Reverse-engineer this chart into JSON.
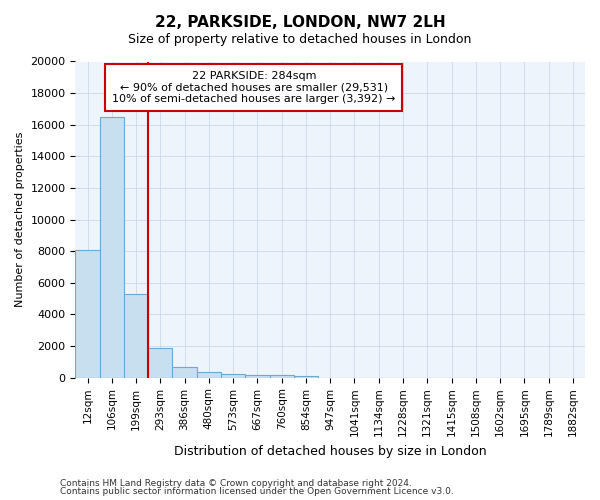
{
  "title": "22, PARKSIDE, LONDON, NW7 2LH",
  "subtitle": "Size of property relative to detached houses in London",
  "xlabel": "Distribution of detached houses by size in London",
  "ylabel": "Number of detached properties",
  "categories": [
    "12sqm",
    "106sqm",
    "199sqm",
    "293sqm",
    "386sqm",
    "480sqm",
    "573sqm",
    "667sqm",
    "760sqm",
    "854sqm",
    "947sqm",
    "1041sqm",
    "1134sqm",
    "1228sqm",
    "1321sqm",
    "1415sqm",
    "1508sqm",
    "1602sqm",
    "1695sqm",
    "1789sqm",
    "1882sqm"
  ],
  "bar_values": [
    8100,
    16500,
    5300,
    1850,
    700,
    330,
    230,
    175,
    155,
    120,
    0,
    0,
    0,
    0,
    0,
    0,
    0,
    0,
    0,
    0,
    0
  ],
  "bar_color": "#c8dff0",
  "bar_edge_color": "#6aaad4",
  "vline_color": "#cc0000",
  "vline_pos": 2.5,
  "annotation_line1": "22 PARKSIDE: 284sqm",
  "annotation_line2": "← 90% of detached houses are smaller (29,531)",
  "annotation_line3": "10% of semi-detached houses are larger (3,392) →",
  "ylim": [
    0,
    20000
  ],
  "yticks": [
    0,
    2000,
    4000,
    6000,
    8000,
    10000,
    12000,
    14000,
    16000,
    18000,
    20000
  ],
  "fig_bg_color": "#ffffff",
  "plot_bg_color": "#eef4fb",
  "footer_line1": "Contains HM Land Registry data © Crown copyright and database right 2024.",
  "footer_line2": "Contains public sector information licensed under the Open Government Licence v3.0.",
  "annotation_box_facecolor": "#ffffff",
  "annotation_box_edgecolor": "#cc0000",
  "grid_color": "#c8d8e8",
  "title_fontsize": 11,
  "subtitle_fontsize": 9
}
